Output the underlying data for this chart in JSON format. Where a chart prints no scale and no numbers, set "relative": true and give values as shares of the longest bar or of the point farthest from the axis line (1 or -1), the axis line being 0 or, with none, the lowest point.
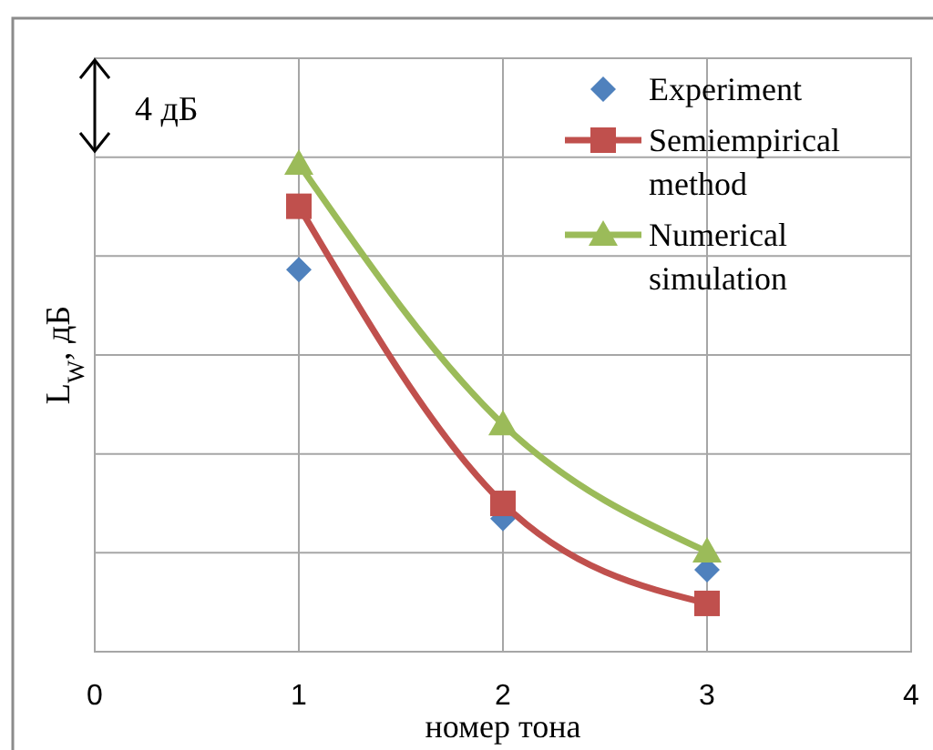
{
  "chart_data": {
    "type": "line",
    "xlabel": "номер тона",
    "ylabel": "L$_{W}$, дБ",
    "relative": true,
    "x": [
      1,
      2,
      3
    ],
    "xlim": [
      0,
      4
    ],
    "xticks": [
      0,
      1,
      2,
      3,
      4
    ],
    "grid": true,
    "legend": "top right",
    "annotations": [
      "4 дБ"
    ],
    "series": [
      {
        "name": "Experiment",
        "type": "scatter",
        "color": "#4f81bd",
        "marker": "diamond",
        "values": [
          0.783,
          0.273,
          0.168
        ]
      },
      {
        "name": "Semiempirical method",
        "color": "#c0504d",
        "marker": "square",
        "values": [
          0.913,
          0.304,
          0.099
        ]
      },
      {
        "name": "Numerical simulation",
        "color": "#9bbb59",
        "marker": "triangle",
        "values": [
          1,
          0.466,
          0.205
        ]
      }
    ]
  }
}
